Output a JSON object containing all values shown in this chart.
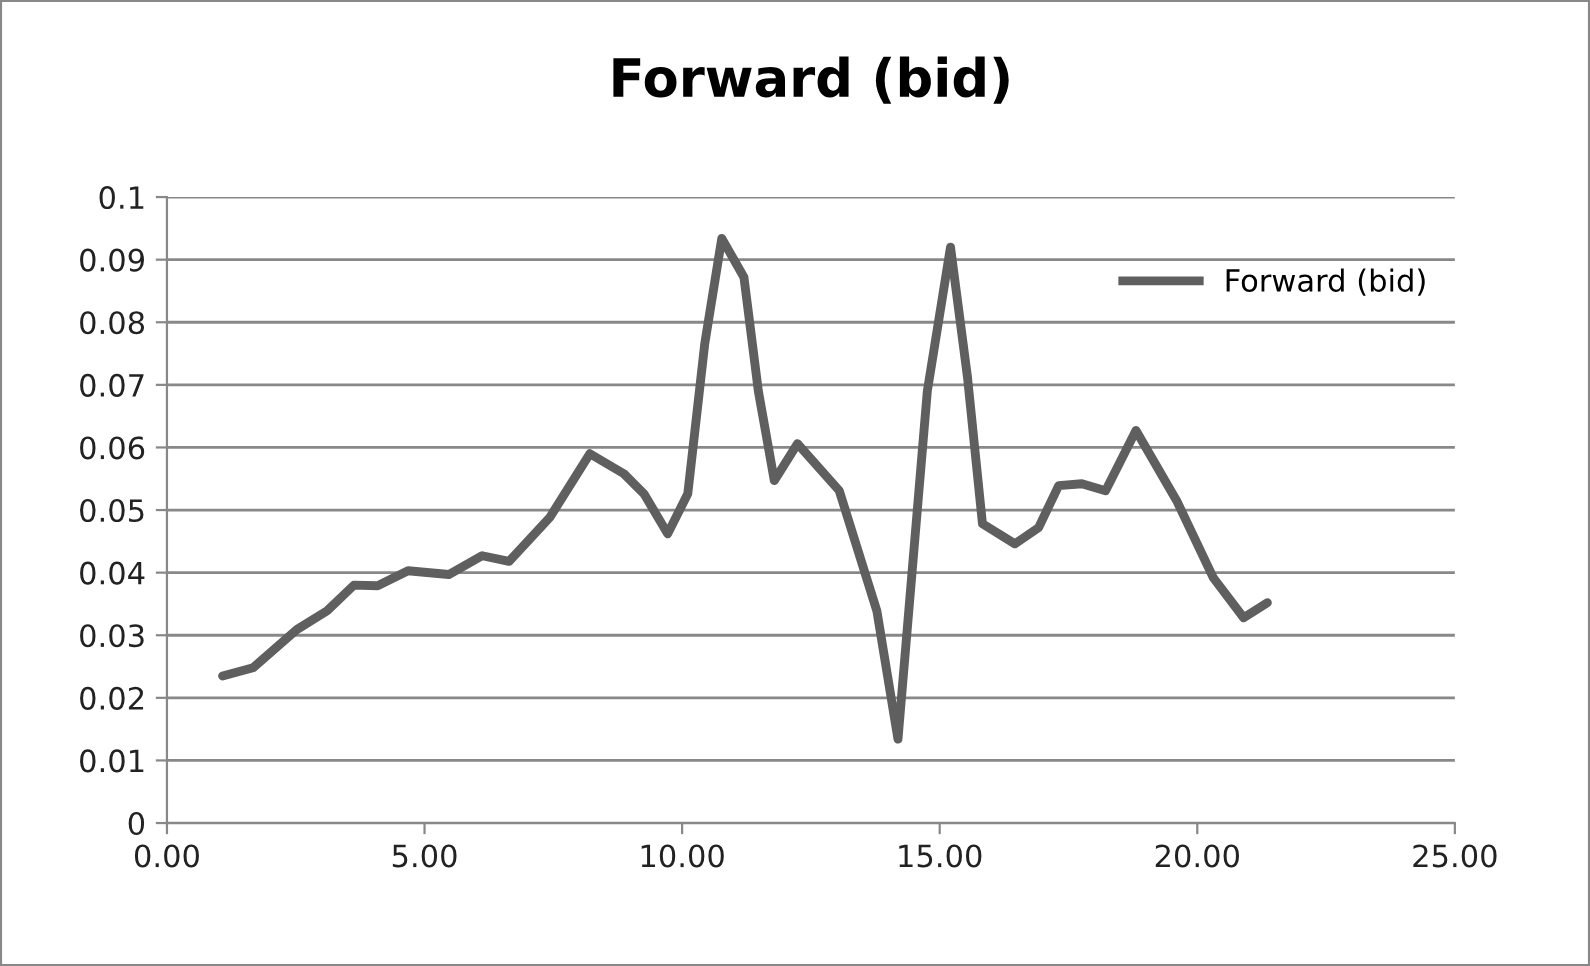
{
  "chart_data": {
    "type": "line",
    "title": "Forward (bid)",
    "series": [
      {
        "name": "Forward (bid)",
        "color": "#5f5f5f",
        "x": [
          1.08,
          1.67,
          2.52,
          3.11,
          3.63,
          4.09,
          4.68,
          5.47,
          6.12,
          6.64,
          7.43,
          8.21,
          8.87,
          9.26,
          9.72,
          10.11,
          10.44,
          10.77,
          11.2,
          11.48,
          11.79,
          12.24,
          13.05,
          13.78,
          14.19,
          14.76,
          15.21,
          15.54,
          15.83,
          16.46,
          16.92,
          17.31,
          17.76,
          18.22,
          18.81,
          19.6,
          20.31,
          20.9,
          21.36
        ],
        "values": [
          0.0235,
          0.0248,
          0.0309,
          0.0339,
          0.038,
          0.0379,
          0.0403,
          0.0397,
          0.0427,
          0.0418,
          0.0488,
          0.059,
          0.0558,
          0.0526,
          0.0462,
          0.0526,
          0.0766,
          0.0934,
          0.0872,
          0.069,
          0.0547,
          0.0606,
          0.0531,
          0.0339,
          0.0134,
          0.069,
          0.092,
          0.0712,
          0.0478,
          0.0446,
          0.0472,
          0.0539,
          0.0542,
          0.0531,
          0.0627,
          0.0515,
          0.0392,
          0.0328,
          0.0352
        ]
      }
    ],
    "xlim": [
      0,
      25
    ],
    "xticks": [
      {
        "value": 0,
        "label": "0.00"
      },
      {
        "value": 5,
        "label": "5.00"
      },
      {
        "value": 10,
        "label": "10.00"
      },
      {
        "value": 15,
        "label": "15.00"
      },
      {
        "value": 20,
        "label": "20.00"
      },
      {
        "value": 25,
        "label": "25.00"
      }
    ],
    "ylim": [
      0,
      0.1
    ],
    "yticks": [
      0,
      0.01,
      0.02,
      0.03,
      0.04,
      0.05,
      0.06,
      0.07,
      0.08,
      0.09,
      0.1
    ],
    "grid": "y",
    "legend": "top right",
    "marker": "none",
    "line_style": "solid"
  }
}
